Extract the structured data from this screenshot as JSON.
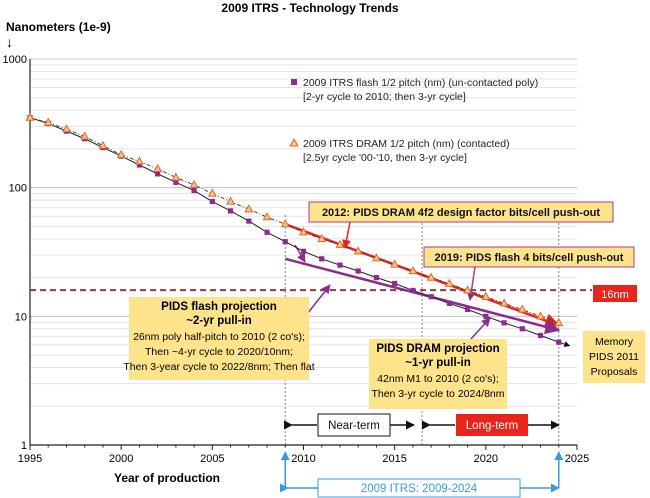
{
  "chart_data": {
    "type": "scatter",
    "title": "2009 ITRS - Technology Trends",
    "ylabel": "Nanometers (1e-9)",
    "xlabel": "Year of production",
    "y_scale": "log",
    "xlim": [
      1995,
      2025
    ],
    "ylim": [
      1,
      1000
    ],
    "grid": true,
    "x_ticks": [
      "1995",
      "2000",
      "2005",
      "2010",
      "2015",
      "2020",
      "2025"
    ],
    "y_ticks": [
      "1",
      "10",
      "100",
      "1000"
    ],
    "series": [
      {
        "name": "2009 ITRS flash 1/2 pitch (nm) (un-contacted poly)",
        "note": "[2-yr cycle to 2010; then 3-yr cycle]",
        "marker": "square",
        "color": "#8b2c8e",
        "x": [
          1995,
          1996,
          1997,
          1998,
          1999,
          2000,
          2001,
          2002,
          2003,
          2004,
          2005,
          2006,
          2007,
          2008,
          2009,
          2010,
          2011,
          2012,
          2013,
          2014,
          2015,
          2016,
          2017,
          2018,
          2019,
          2020,
          2021,
          2022,
          2023,
          2024
        ],
        "y": [
          350,
          315,
          275,
          240,
          205,
          176,
          150,
          128,
          110,
          95,
          78,
          66,
          55,
          45,
          38,
          32,
          28,
          25,
          22.5,
          20,
          18,
          15.9,
          14.2,
          12.6,
          11.3,
          10,
          8.9,
          8,
          7.1,
          6.3
        ]
      },
      {
        "name": "2009 ITRS DRAM 1/2 pitch (nm) (contacted)",
        "note": "[2.5yr cycle '00-'10, then 3-yr cycle]",
        "marker": "triangle",
        "color": "#e8651a",
        "x": [
          1995,
          1996,
          1997,
          1998,
          1999,
          2000,
          2001,
          2002,
          2003,
          2004,
          2005,
          2006,
          2007,
          2008,
          2009,
          2010,
          2011,
          2012,
          2013,
          2014,
          2015,
          2016,
          2017,
          2018,
          2019,
          2020,
          2021,
          2022,
          2023,
          2024
        ],
        "y": [
          350,
          320,
          285,
          250,
          212,
          180,
          160,
          140,
          120,
          105,
          90,
          78,
          68,
          59,
          52,
          45,
          40,
          36,
          32,
          28.3,
          25.3,
          22.5,
          20,
          17.9,
          15.9,
          14.2,
          12.6,
          11.3,
          10,
          8.9
        ]
      }
    ],
    "projection_lines": [
      {
        "name": "pids-dram-pushout",
        "color": "#e8251a",
        "x": [
          2009,
          2024
        ],
        "y": [
          52,
          8.5
        ]
      },
      {
        "name": "pids-flash-pullin",
        "color": "#8b2c8e",
        "x": [
          2009,
          2024
        ],
        "y": [
          28,
          7.8
        ]
      }
    ],
    "reference_line": {
      "y": 16,
      "label": "16nm",
      "color": "#a83232"
    },
    "annotations": {
      "dram_pushout": "2012: PIDS DRAM 4f2 design factor bits/cell push-out",
      "flash_pushout": "2019: PIDS flash 4 bits/cell push-out",
      "flash_projection": {
        "title": "PIDS flash projection",
        "subtitle": "~2-yr pull-in",
        "lines": [
          "26nm poly half-pitch to 2010 (2 co's);",
          "Then ~4-yr cycle to 2020/10nm;",
          "Then 3-year cycle to 2022/8nm; Then flat"
        ]
      },
      "dram_projection": {
        "title": "PIDS DRAM projection",
        "subtitle": "~1-yr pull-in",
        "lines": [
          "42nm M1 to 2010 (2 co's);",
          "Then 3-yr cycle to 2024/8nm"
        ]
      },
      "memory_proposals": [
        "Memory",
        "PIDS 2011",
        "Proposals"
      ],
      "near_term": "Near-term",
      "long_term": "Long-term",
      "itrs_span": "2009 ITRS: 2009-2024"
    }
  }
}
